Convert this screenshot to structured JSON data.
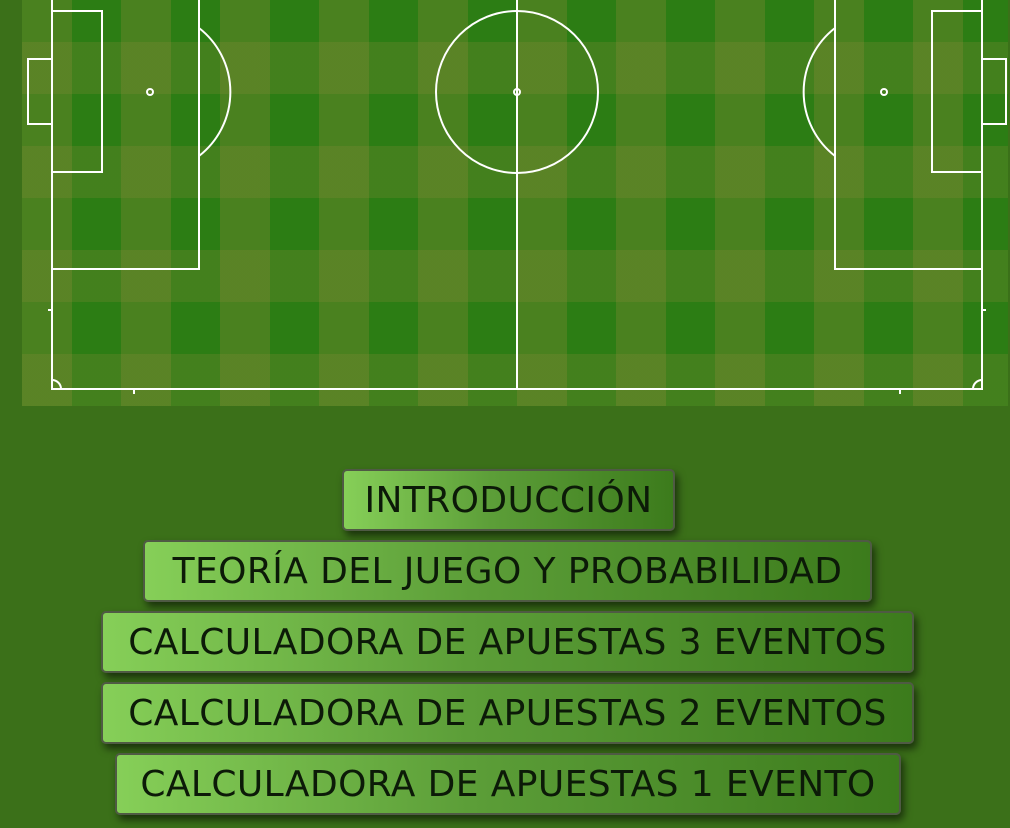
{
  "menu": {
    "items": [
      "INTRODUCCIÓN",
      "TEORÍA DEL JUEGO Y PROBABILIDAD",
      "CALCULADORA DE APUESTAS 3 EVENTOS",
      "CALCULADORA DE APUESTAS 2 EVENTOS",
      "CALCULADORA DE APUESTAS 1 EVENTO"
    ]
  },
  "colors": {
    "page_background": "#3b7019",
    "pitch_green": "#2c7d14",
    "button_light": "#86cf58",
    "button_dark": "#3c7b1c",
    "pitch_lines": "#ffffff"
  }
}
